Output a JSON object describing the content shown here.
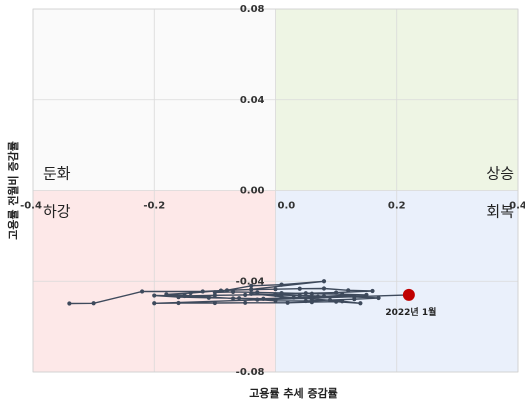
{
  "chart_data": {
    "type": "scatter",
    "xlabel": "고용률 추세 증감률",
    "ylabel": "고용률 전월비 증감률",
    "xlim": [
      -0.4,
      0.4
    ],
    "ylim": [
      -0.08,
      0.08
    ],
    "x_ticks": [
      "-0.4",
      "-0.2",
      "0.0",
      "0.2",
      "0.4"
    ],
    "x_tick_values": [
      -0.4,
      -0.2,
      0.0,
      0.2,
      0.4
    ],
    "y_ticks": [
      "0.08",
      "0.04",
      "0.00",
      "-0.04",
      "-0.08"
    ],
    "y_tick_values": [
      0.08,
      0.04,
      0.0,
      -0.04,
      -0.08
    ],
    "grid": true,
    "quadrants": [
      {
        "label": "상승",
        "x_side": "positive",
        "y_side": "positive",
        "color": "#eef5e4"
      },
      {
        "label": "둔화",
        "x_side": "negative",
        "y_side": "positive",
        "color": "#fafafa"
      },
      {
        "label": "하강",
        "x_side": "negative",
        "y_side": "negative",
        "color": "#fde8e8"
      },
      {
        "label": "회복",
        "x_side": "positive",
        "y_side": "negative",
        "color": "#eaf0fb"
      }
    ],
    "series": [
      {
        "color": "#3e4a5c",
        "points": [
          [
            -0.34,
            -0.0498
          ],
          [
            -0.3,
            -0.0497
          ],
          [
            -0.22,
            -0.0445
          ],
          [
            -0.12,
            -0.0445
          ],
          [
            -0.08,
            -0.044
          ],
          [
            -0.04,
            -0.0437
          ],
          [
            0.0,
            -0.0435
          ],
          [
            0.04,
            -0.0433
          ],
          [
            0.08,
            -0.0432
          ],
          [
            0.12,
            -0.044
          ],
          [
            0.16,
            -0.0443
          ],
          [
            0.1,
            -0.045
          ],
          [
            0.05,
            -0.0453
          ],
          [
            0.0,
            -0.0458
          ],
          [
            -0.05,
            -0.046
          ],
          [
            -0.1,
            -0.0462
          ],
          [
            -0.15,
            -0.0465
          ],
          [
            -0.2,
            -0.0463
          ],
          [
            -0.16,
            -0.047
          ],
          [
            -0.11,
            -0.0473
          ],
          [
            -0.06,
            -0.0475
          ],
          [
            -0.02,
            -0.0477
          ],
          [
            0.03,
            -0.0472
          ],
          [
            0.07,
            -0.0468
          ],
          [
            0.11,
            -0.0463
          ],
          [
            0.15,
            -0.046
          ],
          [
            0.11,
            -0.0457
          ],
          [
            0.06,
            -0.0455
          ],
          [
            0.01,
            -0.0452
          ],
          [
            -0.03,
            -0.0449
          ],
          [
            -0.07,
            -0.0447
          ],
          [
            -0.1,
            -0.0449
          ],
          [
            -0.04,
            -0.042
          ],
          [
            0.01,
            -0.0415
          ],
          [
            0.08,
            -0.04
          ],
          [
            -0.04,
            -0.0436
          ],
          [
            -0.09,
            -0.0441
          ],
          [
            -0.14,
            -0.0452
          ],
          [
            -0.18,
            -0.0458
          ],
          [
            -0.15,
            -0.0462
          ],
          [
            -0.11,
            -0.047
          ],
          [
            -0.07,
            -0.0476
          ],
          [
            -0.03,
            -0.0481
          ],
          [
            0.0,
            -0.0486
          ],
          [
            0.05,
            -0.0487
          ],
          [
            0.09,
            -0.0483
          ],
          [
            0.13,
            -0.0479
          ],
          [
            0.17,
            -0.0474
          ],
          [
            0.13,
            -0.0469
          ],
          [
            0.08,
            -0.0466
          ],
          [
            0.04,
            -0.0463
          ],
          [
            0.0,
            -0.046
          ],
          [
            -0.04,
            -0.0455
          ],
          [
            0.01,
            -0.0468
          ],
          [
            0.06,
            -0.0478
          ],
          [
            0.11,
            -0.0488
          ],
          [
            0.14,
            -0.0497
          ],
          [
            0.1,
            -0.049
          ],
          [
            0.06,
            -0.0492
          ],
          [
            0.02,
            -0.0495
          ],
          [
            -0.05,
            -0.0495
          ],
          [
            -0.1,
            -0.0496
          ],
          [
            -0.16,
            -0.0496
          ],
          [
            -0.2,
            -0.0497
          ],
          [
            0.22,
            -0.046
          ]
        ]
      }
    ],
    "highlight": {
      "x": 0.22,
      "y": -0.046,
      "label": "2022년 1월",
      "color": "#c00000"
    }
  }
}
